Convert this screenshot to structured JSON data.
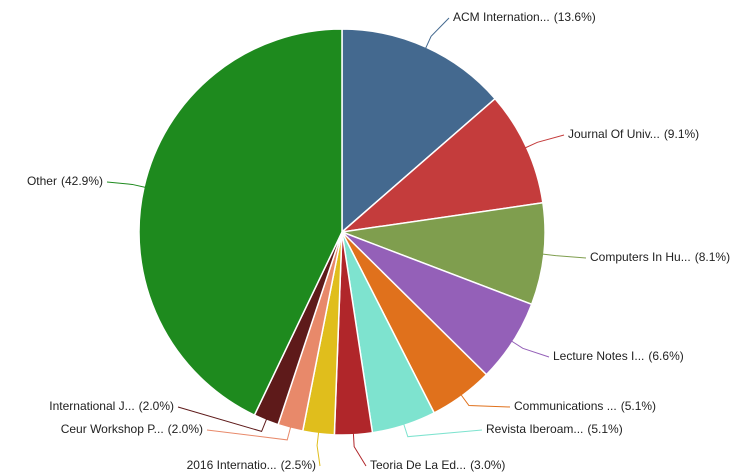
{
  "chart_data": {
    "type": "pie",
    "categories": [
      "ACM Internation...",
      "Journal Of Univ...",
      "Computers In Hu...",
      "Lecture Notes I...",
      "Communications ...",
      "Revista Iberoam...",
      "Teoria De La Ed...",
      "2016 Internatio...",
      "Ceur Workshop P...",
      "International J...",
      "Other"
    ],
    "values": [
      13.6,
      9.1,
      8.1,
      6.6,
      5.1,
      5.1,
      3.0,
      2.5,
      2.0,
      2.0,
      42.9
    ],
    "value_labels": [
      "(13.6%)",
      "(9.1%)",
      "(8.1%)",
      "(6.6%)",
      "(5.1%)",
      "(5.1%)",
      "(3.0%)",
      "(2.5%)",
      "(2.0%)",
      "(2.0%)",
      "(42.9%)"
    ],
    "colors": [
      "#44698f",
      "#c43c3c",
      "#7f9e4e",
      "#9460b8",
      "#e0711c",
      "#7ee3cf",
      "#b0262a",
      "#e0be1c",
      "#e8896a",
      "#5e1a1a",
      "#1e8a1e"
    ]
  }
}
